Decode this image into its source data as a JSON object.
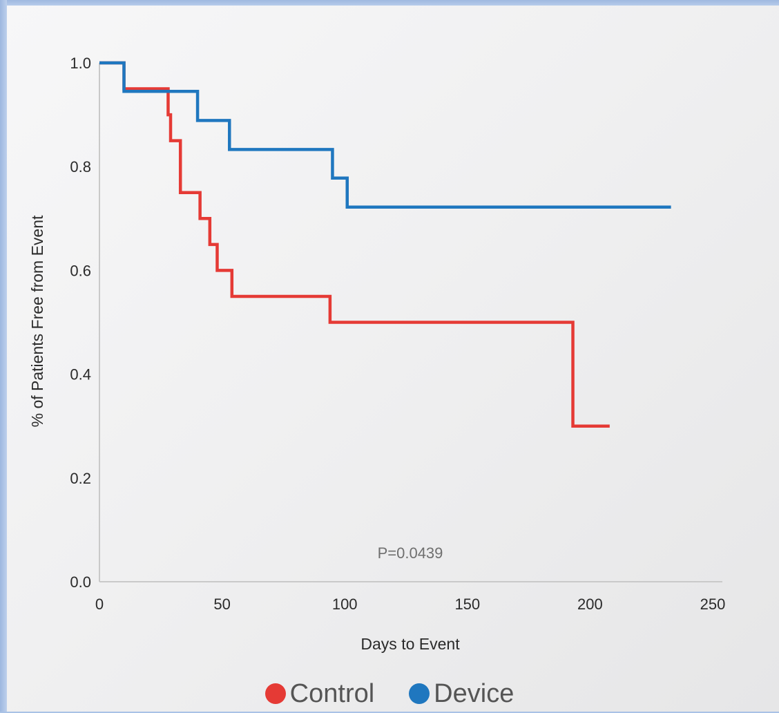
{
  "chart_data": {
    "type": "line",
    "step": true,
    "title": "",
    "xlabel": "Days to Event",
    "ylabel": "% of Patients Free from Event",
    "xlim": [
      0,
      250
    ],
    "ylim": [
      0,
      1.0
    ],
    "x_ticks": [
      0,
      50,
      100,
      150,
      200,
      250
    ],
    "y_ticks": [
      0.0,
      0.2,
      0.4,
      0.6,
      0.8,
      1.0
    ],
    "x_tick_labels": [
      "0",
      "50",
      "100",
      "150",
      "200",
      "250"
    ],
    "y_tick_labels": [
      "0.0",
      "0.2",
      "0.4",
      "0.6",
      "0.8",
      "1.0"
    ],
    "grid": false,
    "legend_position": "bottom-center",
    "annotation": "P=0.0439",
    "series": [
      {
        "name": "Control",
        "color": "#e53a35",
        "x": [
          0,
          10,
          28,
          29,
          30,
          33,
          41,
          45,
          47,
          48,
          54,
          94,
          193,
          208
        ],
        "y": [
          1.0,
          0.95,
          0.9,
          0.85,
          0.85,
          0.75,
          0.7,
          0.65,
          0.65,
          0.6,
          0.55,
          0.5,
          0.3,
          0.3
        ]
      },
      {
        "name": "Device",
        "color": "#1f77bf",
        "x": [
          0,
          10,
          40,
          53,
          95,
          101,
          233
        ],
        "y": [
          1.0,
          0.945,
          0.889,
          0.833,
          0.778,
          0.722,
          0.722
        ]
      }
    ]
  }
}
